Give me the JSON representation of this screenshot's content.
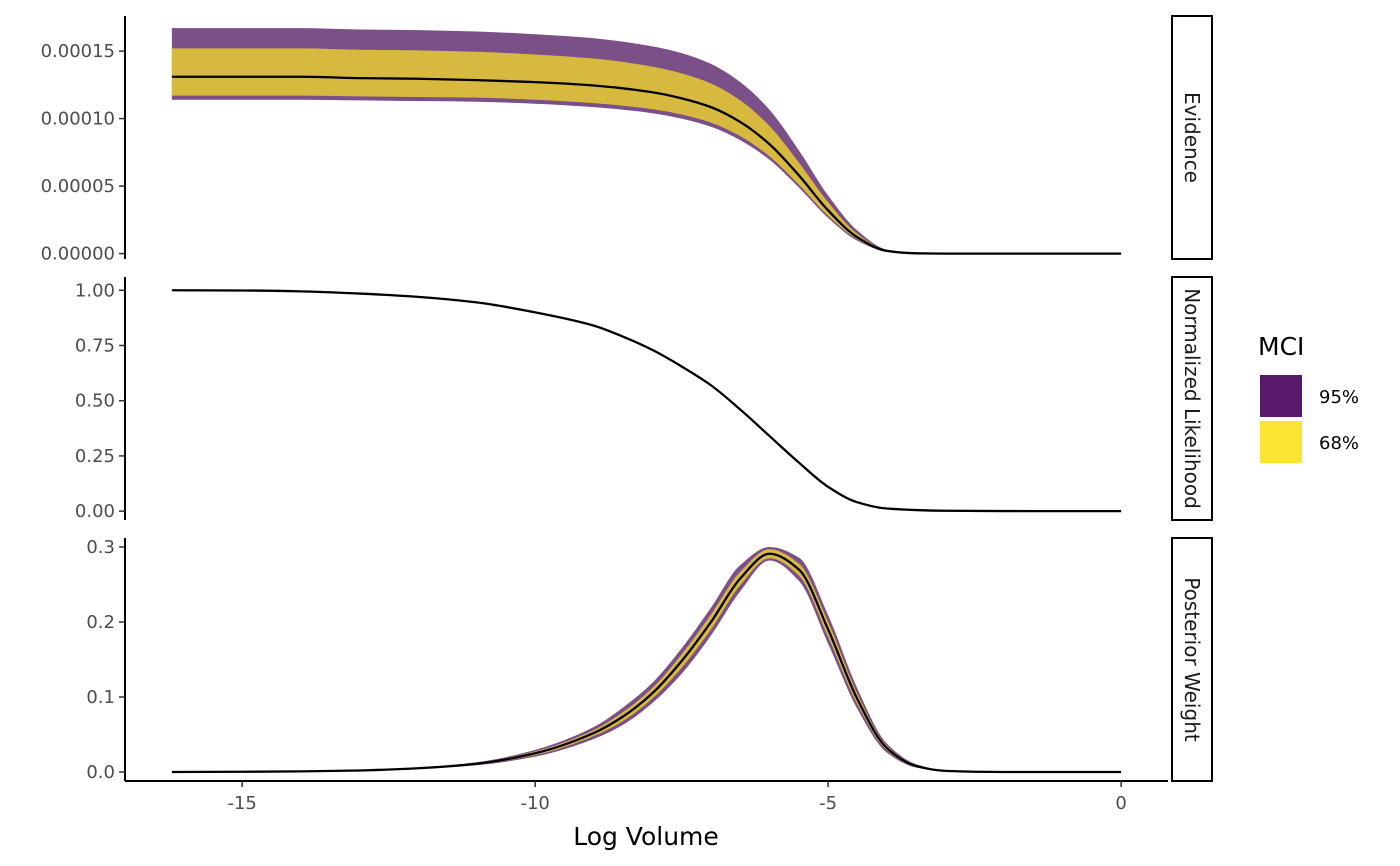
{
  "chart_data": {
    "type": "area",
    "xlabel": "Log Volume",
    "x_ticks": [
      -15,
      -10,
      -5,
      0
    ],
    "x_tick_labels": [
      "-15",
      "-10",
      "-5",
      "0"
    ],
    "xlim": [
      -17,
      0.8
    ],
    "legend": {
      "title": "MCI",
      "placement": "right",
      "entries": [
        {
          "label": "95%",
          "color": "#440154"
        },
        {
          "label": "68%",
          "color": "#fde725"
        }
      ]
    },
    "panels": [
      {
        "strip": "Evidence",
        "ylim": [
          -4e-06,
          0.000176
        ],
        "y_ticks": [
          0,
          5e-05,
          0.0001,
          0.00015
        ],
        "y_tick_labels": [
          "0.00000",
          "0.00005",
          "0.00010",
          "0.00015"
        ],
        "x": [
          -16.2,
          -15,
          -14,
          -13,
          -12,
          -11,
          -10,
          -9,
          -8,
          -7.5,
          -7,
          -6.5,
          -6,
          -5.5,
          -5,
          -4.5,
          -4,
          -3.5,
          -3,
          -2,
          -1,
          0
        ],
        "median": [
          0.000131,
          0.000131,
          0.000131,
          0.00013,
          0.0001295,
          0.0001285,
          0.000127,
          0.0001245,
          0.0001195,
          0.000115,
          0.0001085,
          9.75e-05,
          8.1e-05,
          5.8e-05,
          3.2e-05,
          1.2e-05,
          2e-06,
          2e-07,
          0,
          0,
          0,
          0
        ],
        "band68": {
          "lower": [
            0.000117,
            0.000117,
            0.000117,
            0.0001165,
            0.000116,
            0.0001155,
            0.000114,
            0.0001115,
            0.000107,
            0.000103,
            9.7e-05,
            8.7e-05,
            7.2e-05,
            5.1e-05,
            2.8e-05,
            1.05e-05,
            1.8e-06,
            2e-07,
            0,
            0,
            0,
            0
          ],
          "upper": [
            0.000152,
            0.000152,
            0.000152,
            0.000151,
            0.0001505,
            0.0001495,
            0.0001475,
            0.0001445,
            0.0001385,
            0.0001335,
            0.000126,
            0.0001135,
            9.45e-05,
            6.75e-05,
            3.8e-05,
            1.45e-05,
            2.5e-06,
            3e-07,
            0,
            0,
            0,
            0
          ]
        },
        "band95": {
          "lower": [
            0.000114,
            0.000114,
            0.000114,
            0.0001135,
            0.000113,
            0.0001125,
            0.000111,
            0.0001085,
            0.000104,
            0.0001,
            9.4e-05,
            8.4e-05,
            6.95e-05,
            4.9e-05,
            2.65e-05,
            9.5e-06,
            1.5e-06,
            2e-07,
            0,
            0,
            0,
            0
          ],
          "upper": [
            0.000167,
            0.000167,
            0.000167,
            0.000166,
            0.0001655,
            0.0001645,
            0.0001625,
            0.0001595,
            0.0001535,
            0.0001485,
            0.0001405,
            0.000127,
            0.0001065,
            7.65e-05,
            4.3e-05,
            1.7e-05,
            3e-06,
            4e-07,
            0,
            0,
            0,
            0
          ]
        }
      },
      {
        "strip": "Normalized Likelihood",
        "ylim": [
          -0.04,
          1.06
        ],
        "y_ticks": [
          0,
          0.25,
          0.5,
          0.75,
          1
        ],
        "y_tick_labels": [
          "0.00",
          "0.25",
          "0.50",
          "0.75",
          "1.00"
        ],
        "x": [
          -16.2,
          -15,
          -14,
          -13,
          -12,
          -11,
          -10,
          -9,
          -8.5,
          -8,
          -7.5,
          -7,
          -6.5,
          -6,
          -5.5,
          -5,
          -4.5,
          -4,
          -3,
          -2,
          -1,
          0
        ],
        "median": [
          1.0,
          0.999,
          0.995,
          0.985,
          0.97,
          0.945,
          0.9,
          0.84,
          0.79,
          0.73,
          0.655,
          0.57,
          0.46,
          0.34,
          0.22,
          0.11,
          0.04,
          0.012,
          0.002,
          0.0005,
          0,
          0
        ]
      },
      {
        "strip": "Posterior Weight",
        "ylim": [
          -0.012,
          0.312
        ],
        "y_ticks": [
          0,
          0.1,
          0.2,
          0.3
        ],
        "y_tick_labels": [
          "0.0",
          "0.1",
          "0.2",
          "0.3"
        ],
        "x": [
          -16.2,
          -15,
          -14,
          -13,
          -12,
          -11,
          -10,
          -9,
          -8.5,
          -8,
          -7.5,
          -7,
          -6.5,
          -6,
          -5.5,
          -5,
          -4.5,
          -4,
          -3.5,
          -3,
          -2,
          -1,
          0
        ],
        "median": [
          0,
          0.0003,
          0.0008,
          0.002,
          0.005,
          0.011,
          0.025,
          0.052,
          0.074,
          0.105,
          0.148,
          0.2,
          0.258,
          0.291,
          0.27,
          0.19,
          0.097,
          0.032,
          0.008,
          0.0015,
          0,
          0,
          0
        ],
        "band68": {
          "lower": [
            0,
            0.0002,
            0.0007,
            0.0018,
            0.0045,
            0.01,
            0.0225,
            0.048,
            0.068,
            0.098,
            0.139,
            0.19,
            0.249,
            0.285,
            0.262,
            0.18,
            0.09,
            0.029,
            0.007,
            0.0012,
            0,
            0,
            0
          ],
          "upper": [
            0,
            0.0004,
            0.0009,
            0.0022,
            0.0055,
            0.012,
            0.0275,
            0.056,
            0.08,
            0.112,
            0.157,
            0.21,
            0.267,
            0.297,
            0.278,
            0.2,
            0.104,
            0.035,
            0.009,
            0.0018,
            0,
            0,
            0
          ]
        },
        "band95": {
          "lower": [
            0,
            0.0001,
            0.0006,
            0.0016,
            0.004,
            0.009,
            0.0205,
            0.044,
            0.063,
            0.092,
            0.131,
            0.182,
            0.241,
            0.282,
            0.255,
            0.171,
            0.084,
            0.026,
            0.006,
            0.001,
            0,
            0,
            0
          ],
          "upper": [
            0,
            0.0005,
            0.001,
            0.0024,
            0.006,
            0.013,
            0.0295,
            0.06,
            0.086,
            0.119,
            0.165,
            0.219,
            0.276,
            0.3,
            0.286,
            0.209,
            0.111,
            0.038,
            0.0105,
            0.002,
            0,
            0,
            0
          ]
        }
      }
    ]
  },
  "colors": {
    "band95": "#7b4f87",
    "band68": "#d8b93f",
    "line": "#000000",
    "legend95": "#58196b",
    "legend68": "#fde333"
  }
}
